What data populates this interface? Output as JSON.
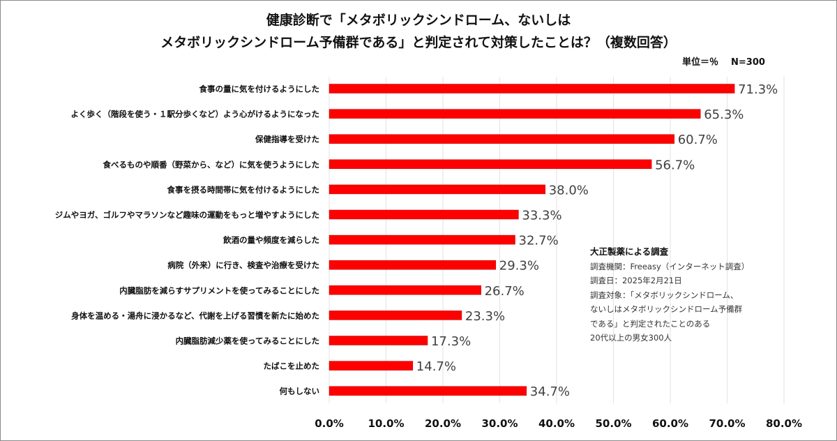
{
  "chart_data": {
    "type": "bar",
    "orientation": "horizontal",
    "title_lines": [
      "健康診断で「メタボリックシンドローム、ないしは",
      "メタボリックシンドローム予備群である」と判定されて対策したことは？（複数回答）"
    ],
    "unit_label": "単位＝％",
    "n_label": "N=300",
    "categories": [
      "食事の量に気を付けるようにした",
      "よく歩く（階段を使う・１駅分歩くなど）よう心がけるようになった",
      "保健指導を受けた",
      "食べるものや順番（野菜から、など）に気を使うようにした",
      "食事を摂る時間帯に気を付けるようにした",
      "ジムやヨガ、ゴルフやマラソンなど趣味の運動をもっと増やすようにした",
      "飲酒の量や頻度を減らした",
      "病院（外来）に行き、検査や治療を受けた",
      "内臓脂肪を減らすサプリメントを使ってみることにした",
      "身体を温める・湯舟に浸かるなど、代謝を上げる習慣を新たに始めた",
      "内臓脂肪減少薬を使ってみることにした",
      "たばこを止めた",
      "何もしない"
    ],
    "values": [
      71.3,
      65.3,
      60.7,
      56.7,
      38.0,
      33.3,
      32.7,
      29.3,
      26.7,
      23.3,
      17.3,
      14.7,
      34.7
    ],
    "data_labels": [
      "71.3%",
      "65.3%",
      "60.7%",
      "56.7%",
      "38.0%",
      "33.3%",
      "32.7%",
      "29.3%",
      "26.7%",
      "23.3%",
      "17.3%",
      "14.7%",
      "34.7%"
    ],
    "xlim": [
      0,
      80
    ],
    "x_ticks": [
      "0.0%",
      "10.0%",
      "20.0%",
      "30.0%",
      "40.0%",
      "50.0%",
      "60.0%",
      "70.0%",
      "80.0%"
    ],
    "grid": true,
    "bar_color": "#ff0000"
  },
  "note": {
    "heading": "大正製薬による調査",
    "lines": [
      "調査機関：Freeasy（インターネット調査）",
      "調査日：2025年2月21日",
      "調査対象：「メタボリックシンドローム、",
      "ないしはメタボリックシンドローム予備群",
      "である」と判定されたことのある",
      "20代以上の男女300人"
    ]
  }
}
